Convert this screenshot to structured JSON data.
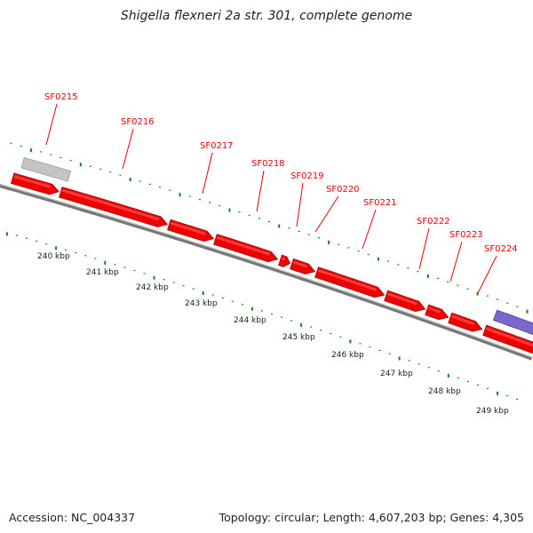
{
  "header": {
    "title": "Shigella flexneri 2a str. 301, complete genome"
  },
  "footer": {
    "accession": "Accession: NC_004337",
    "summary": "Topology: circular; Length: 4,607,203 bp; Genes: 4,305"
  },
  "colors": {
    "gene": "#ee0000",
    "gene_dark": "#aa0000",
    "gray_feature": "#c4c4c4",
    "blue_feature": "#7b68cc",
    "backbone": "#777777",
    "tick": "#118811",
    "label": "#ee0000"
  },
  "genes": [
    {
      "label": "SF0215"
    },
    {
      "label": "SF0216"
    },
    {
      "label": "SF0217"
    },
    {
      "label": "SF0218"
    },
    {
      "label": "SF0219"
    },
    {
      "label": "SF0220"
    },
    {
      "label": "SF0221"
    },
    {
      "label": "SF0222"
    },
    {
      "label": "SF0223"
    },
    {
      "label": "SF0224"
    }
  ],
  "scale_labels": [
    "240 kbp",
    "241 kbp",
    "242 kbp",
    "243 kbp",
    "244 kbp",
    "245 kbp",
    "246 kbp",
    "247 kbp",
    "248 kbp",
    "249 kbp"
  ]
}
